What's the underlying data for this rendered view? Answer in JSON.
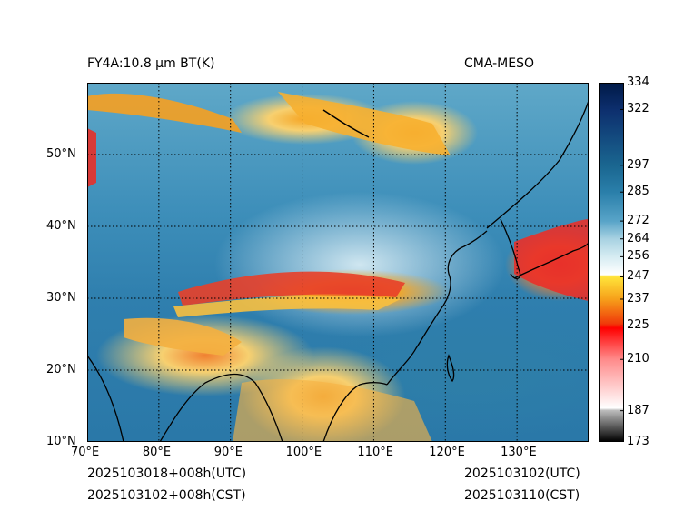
{
  "titles": {
    "left": "FY4A:10.8 μm BT(K)",
    "right": "CMA-MESO"
  },
  "footer": {
    "left_line1": "2025103018+008h(UTC)",
    "left_line2": "2025103102+008h(CST)",
    "right_line1": "2025103102(UTC)",
    "right_line2": "2025103110(CST)"
  },
  "map": {
    "lon_range": [
      70,
      140
    ],
    "lat_range": [
      10,
      60
    ],
    "lon_ticks": [
      {
        "value": 70,
        "label": "70°E"
      },
      {
        "value": 80,
        "label": "80°E"
      },
      {
        "value": 90,
        "label": "90°E"
      },
      {
        "value": 100,
        "label": "100°E"
      },
      {
        "value": 110,
        "label": "110°E"
      },
      {
        "value": 120,
        "label": "120°E"
      },
      {
        "value": 130,
        "label": "130°E"
      }
    ],
    "lat_ticks": [
      {
        "value": 10,
        "label": "10°N"
      },
      {
        "value": 20,
        "label": "20°N"
      },
      {
        "value": 30,
        "label": "30°N"
      },
      {
        "value": 40,
        "label": "40°N"
      },
      {
        "value": 50,
        "label": "50°N"
      }
    ],
    "gridline_style": "dotted"
  },
  "colorbar": {
    "min": 173,
    "max": 334,
    "ticks": [
      {
        "value": 334,
        "label": "334"
      },
      {
        "value": 322,
        "label": "322"
      },
      {
        "value": 297,
        "label": "297"
      },
      {
        "value": 285,
        "label": "285"
      },
      {
        "value": 272,
        "label": "272"
      },
      {
        "value": 264,
        "label": "264"
      },
      {
        "value": 256,
        "label": "256"
      },
      {
        "value": 247,
        "label": "247"
      },
      {
        "value": 237,
        "label": "237"
      },
      {
        "value": 225,
        "label": "225"
      },
      {
        "value": 210,
        "label": "210"
      },
      {
        "value": 187,
        "label": "187"
      },
      {
        "value": 173,
        "label": "173"
      }
    ],
    "stops": [
      {
        "value": 173,
        "color": "#000000"
      },
      {
        "value": 187,
        "color": "#bdbdbd"
      },
      {
        "value": 188,
        "color": "#ffffff"
      },
      {
        "value": 210,
        "color": "#ff8a8a"
      },
      {
        "value": 224,
        "color": "#ff0000"
      },
      {
        "value": 226,
        "color": "#f03a0a"
      },
      {
        "value": 237,
        "color": "#f6a01a"
      },
      {
        "value": 247,
        "color": "#ffe43a"
      },
      {
        "value": 248,
        "color": "#ffffff"
      },
      {
        "value": 256,
        "color": "#d6ecf2"
      },
      {
        "value": 264,
        "color": "#a8d2e2"
      },
      {
        "value": 272,
        "color": "#58a4c8"
      },
      {
        "value": 285,
        "color": "#2a7faa"
      },
      {
        "value": 297,
        "color": "#1a6690"
      },
      {
        "value": 322,
        "color": "#0d2f6e"
      },
      {
        "value": 334,
        "color": "#001a48"
      }
    ]
  }
}
